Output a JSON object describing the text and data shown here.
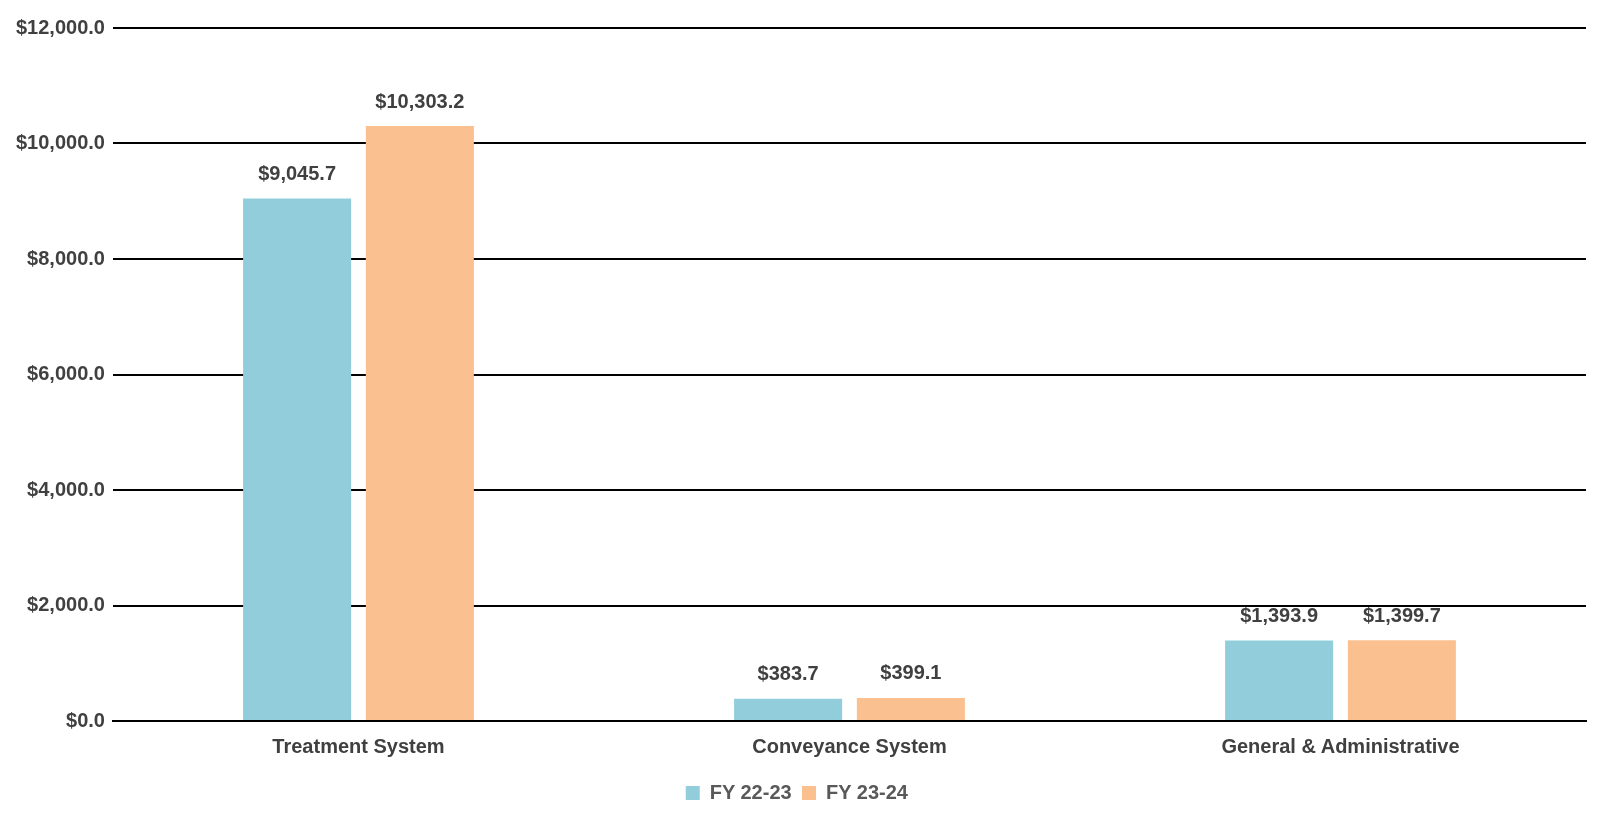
{
  "chart_data": {
    "type": "bar",
    "categories": [
      "Treatment System",
      "Conveyance System",
      "General & Administrative"
    ],
    "series": [
      {
        "name": "FY 22-23",
        "color": "#92cddc",
        "values": [
          9045.7,
          383.7,
          1393.9
        ],
        "value_labels": [
          "$9,045.7",
          "$383.7",
          "$1,393.9"
        ]
      },
      {
        "name": "FY 23-24",
        "color": "#fac090",
        "values": [
          10303.2,
          399.1,
          1399.7
        ],
        "value_labels": [
          "$10,303.2",
          "$399.1",
          "$1,399.7"
        ]
      }
    ],
    "ylim": [
      0,
      12000
    ],
    "yticks": [
      {
        "value": 0,
        "label": "$0.0"
      },
      {
        "value": 2000,
        "label": "$2,000.0"
      },
      {
        "value": 4000,
        "label": "$4,000.0"
      },
      {
        "value": 6000,
        "label": "$6,000.0"
      },
      {
        "value": 8000,
        "label": "$8,000.0"
      },
      {
        "value": 10000,
        "label": "$10,000.0"
      },
      {
        "value": 12000,
        "label": "$12,000.0"
      }
    ],
    "grid": "y",
    "legend": "bottom"
  }
}
